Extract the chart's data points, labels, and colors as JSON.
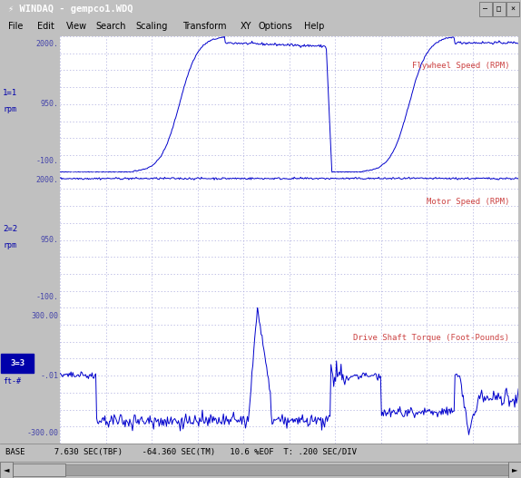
{
  "title_bar": "WINDAQ - gempco1.WDQ",
  "menu_items": [
    "File",
    "Edit",
    "View",
    "Search",
    "Scaling",
    "Transform",
    "XY",
    "Options",
    "Help"
  ],
  "win_bg_color": "#c0c0c0",
  "plot_bg_color": "#ffffff",
  "grid_color": "#aaaadd",
  "line_color": "#0000cc",
  "red_sep_color": "#cc0000",
  "label_color": "#0000aa",
  "channel_name_color": "#cc4444",
  "ytick_color": "#4444aa",
  "status_bg": "#c0c0c0",
  "status_text_color": "#000000",
  "status_text": "BASE      7.630 SEC(TBF)    -64.360 SEC(TM)   10.6 %EOF  T: .200 SEC/DIV",
  "title_bg": "#000080",
  "title_text": "WINDAQ - gempco1.WDQ",
  "channels": [
    {
      "label": "1=1",
      "unit": "rpm",
      "ymin": -100,
      "ymax": 2000,
      "ytick_top": "2000.",
      "ytick_mid": "950.",
      "ytick_bot": "-100.",
      "channel_name": "Flywheel Speed (RPM)"
    },
    {
      "label": "2=2",
      "unit": "rpm",
      "ymin": -100,
      "ymax": 2000,
      "ytick_top": "2000.",
      "ytick_mid": "950.",
      "ytick_bot": "-100.",
      "channel_name": "Motor Speed (RPM)"
    },
    {
      "label": "3=3",
      "unit": "ft-#",
      "ymin": -300,
      "ymax": 300,
      "ytick_top": "300.00",
      "ytick_mid": "-.01",
      "ytick_bot": "-300.00",
      "channel_name": "Drive Shaft Torque (Foot-Pounds)"
    }
  ]
}
